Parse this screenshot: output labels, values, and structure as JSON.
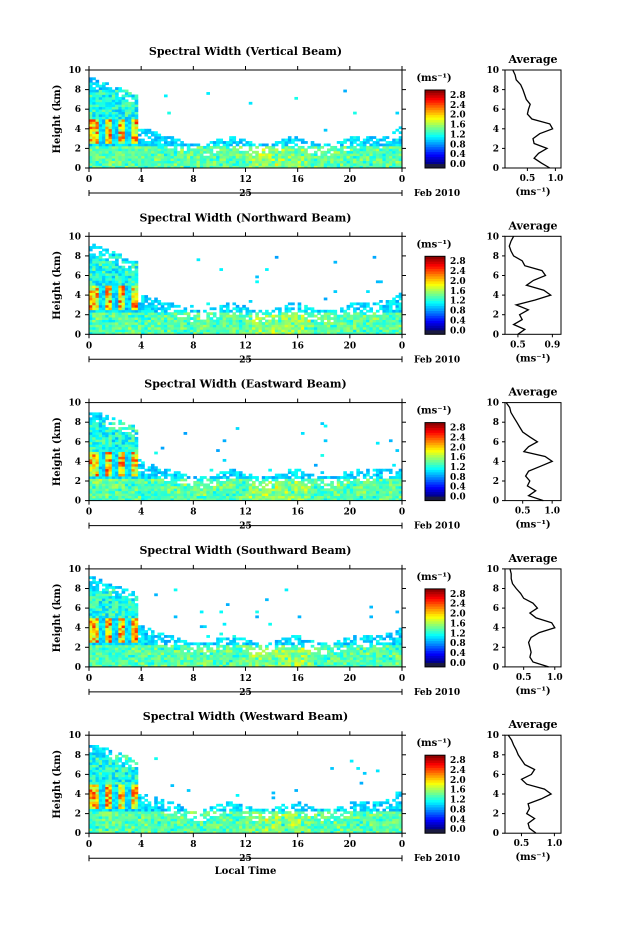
{
  "chart_data": [
    {
      "type": "heatmap",
      "title": "Spectral Width (Vertical Beam)",
      "ylabel": "Height (km)",
      "xlim": [
        0,
        24
      ],
      "ylim": [
        0,
        10
      ],
      "xticks": [
        "0",
        "4",
        "8",
        "12",
        "16",
        "20",
        "0"
      ],
      "yticks": [
        "0",
        "2",
        "4",
        "6",
        "8",
        "10"
      ],
      "date_label": "25",
      "month_label": "Feb 2010",
      "colorbar": {
        "unit": "(ms⁻¹)",
        "ticks": [
          "0.0",
          "0.4",
          "0.8",
          "1.2",
          "1.6",
          "2.0",
          "2.4",
          "2.8"
        ],
        "range": [
          0,
          3.0
        ]
      },
      "profile": {
        "title": "Average",
        "xlabel": "(ms⁻¹)",
        "xticks": [
          "0.5",
          "1.0"
        ],
        "xlim": [
          0.1,
          1.1
        ],
        "heights": [
          0,
          0.5,
          1,
          1.5,
          2,
          2.5,
          3,
          3.5,
          4,
          4.5,
          5,
          5.5,
          6,
          6.5,
          7,
          7.5,
          8,
          8.5,
          9,
          9.5,
          10
        ],
        "values": [
          0.9,
          0.75,
          0.62,
          0.7,
          0.85,
          0.62,
          0.6,
          0.72,
          0.95,
          0.9,
          0.58,
          0.5,
          0.52,
          0.55,
          0.48,
          0.45,
          0.42,
          0.38,
          0.3,
          0.28,
          0.24
        ]
      }
    },
    {
      "type": "heatmap",
      "title": "Spectral Width (Northward Beam)",
      "ylabel": "Height (km)",
      "xlim": [
        0,
        24
      ],
      "ylim": [
        0,
        10
      ],
      "xticks": [
        "0",
        "4",
        "8",
        "12",
        "16",
        "20",
        "0"
      ],
      "yticks": [
        "0",
        "2",
        "4",
        "6",
        "8",
        "10"
      ],
      "date_label": "25",
      "month_label": "Feb 2010",
      "colorbar": {
        "unit": "(ms⁻¹)",
        "ticks": [
          "0.0",
          "0.4",
          "0.8",
          "1.2",
          "1.6",
          "2.0",
          "2.4",
          "2.8"
        ],
        "range": [
          0,
          3.0
        ]
      },
      "profile": {
        "title": "Average",
        "xlabel": "(ms⁻¹)",
        "xticks": [
          "0.5",
          "0.9"
        ],
        "xlim": [
          0.35,
          1.0
        ],
        "heights": [
          0,
          0.5,
          1,
          1.5,
          2,
          2.5,
          3,
          3.5,
          4,
          4.5,
          5,
          5.5,
          6,
          6.5,
          7,
          7.5,
          8,
          8.5,
          9,
          9.5,
          10
        ],
        "values": [
          0.5,
          0.58,
          0.45,
          0.55,
          0.52,
          0.62,
          0.48,
          0.7,
          0.88,
          0.8,
          0.6,
          0.68,
          0.82,
          0.78,
          0.58,
          0.55,
          0.45,
          0.42,
          0.4,
          0.42,
          0.45
        ]
      }
    },
    {
      "type": "heatmap",
      "title": "Spectral Width (Eastward Beam)",
      "ylabel": "Height (km)",
      "xlim": [
        0,
        24
      ],
      "ylim": [
        0,
        10
      ],
      "xticks": [
        "0",
        "4",
        "8",
        "12",
        "16",
        "20",
        "0"
      ],
      "yticks": [
        "0",
        "2",
        "4",
        "6",
        "8",
        "10"
      ],
      "date_label": "25",
      "month_label": "Feb 2010",
      "colorbar": {
        "unit": "(ms⁻¹)",
        "ticks": [
          "0.0",
          "0.4",
          "0.8",
          "1.2",
          "1.6",
          "2.0",
          "2.4",
          "2.8"
        ],
        "range": [
          0,
          3.0
        ]
      },
      "profile": {
        "title": "Average",
        "xlabel": "(ms⁻¹)",
        "xticks": [
          "0.5",
          "1.0"
        ],
        "xlim": [
          0.2,
          1.15
        ],
        "heights": [
          0,
          0.5,
          1,
          1.5,
          2,
          2.5,
          3,
          3.5,
          4,
          4.5,
          5,
          5.5,
          6,
          6.5,
          7,
          7.5,
          8,
          8.5,
          9,
          9.5,
          10
        ],
        "values": [
          0.85,
          0.6,
          0.72,
          0.58,
          0.62,
          0.55,
          0.6,
          0.8,
          1.0,
          0.88,
          0.52,
          0.6,
          0.75,
          0.62,
          0.5,
          0.45,
          0.4,
          0.35,
          0.3,
          0.28,
          0.22
        ]
      }
    },
    {
      "type": "heatmap",
      "title": "Spectral Width (Southward Beam)",
      "ylabel": "Height (km)",
      "xlim": [
        0,
        24
      ],
      "ylim": [
        0,
        10
      ],
      "xticks": [
        "0",
        "4",
        "8",
        "12",
        "16",
        "20",
        "0"
      ],
      "yticks": [
        "0",
        "2",
        "4",
        "6",
        "8",
        "10"
      ],
      "date_label": "25",
      "month_label": "Feb 2010",
      "colorbar": {
        "unit": "(ms⁻¹)",
        "ticks": [
          "0.0",
          "0.4",
          "0.8",
          "1.2",
          "1.6",
          "2.0",
          "2.4",
          "2.8"
        ],
        "range": [
          0,
          3.0
        ]
      },
      "profile": {
        "title": "Average",
        "xlabel": "(ms⁻¹)",
        "xticks": [
          "0.5",
          "1.0"
        ],
        "xlim": [
          0.2,
          1.1
        ],
        "heights": [
          0,
          0.5,
          1,
          1.5,
          2,
          2.5,
          3,
          3.5,
          4,
          4.5,
          5,
          5.5,
          6,
          6.5,
          7,
          7.5,
          8,
          8.5,
          9,
          9.5,
          10
        ],
        "values": [
          0.9,
          0.65,
          0.6,
          0.62,
          0.6,
          0.58,
          0.62,
          0.75,
          1.0,
          0.95,
          0.7,
          0.6,
          0.72,
          0.65,
          0.5,
          0.45,
          0.38,
          0.32,
          0.3,
          0.3,
          0.28
        ]
      }
    },
    {
      "type": "heatmap",
      "title": "Spectral Width (Westward Beam)",
      "ylabel": "Height (km)",
      "xlabel": "Local Time",
      "xlim": [
        0,
        24
      ],
      "ylim": [
        0,
        10
      ],
      "xticks": [
        "0",
        "4",
        "8",
        "12",
        "16",
        "20",
        "0"
      ],
      "yticks": [
        "0",
        "2",
        "4",
        "6",
        "8",
        "10"
      ],
      "date_label": "25",
      "month_label": "Feb 2010",
      "colorbar": {
        "unit": "(ms⁻¹)",
        "ticks": [
          "0.0",
          "0.4",
          "0.8",
          "1.2",
          "1.6",
          "2.0",
          "2.4",
          "2.8"
        ],
        "range": [
          0,
          3.0
        ]
      },
      "profile": {
        "title": "Average",
        "xlabel": "(ms⁻¹)",
        "xticks": [
          "0.5",
          "1.0"
        ],
        "xlim": [
          0.25,
          1.1
        ],
        "heights": [
          0,
          0.5,
          1,
          1.5,
          2,
          2.5,
          3,
          3.5,
          4,
          4.5,
          5,
          5.5,
          6,
          6.5,
          7,
          7.5,
          8,
          8.5,
          9,
          9.5,
          10
        ],
        "values": [
          0.72,
          0.62,
          0.6,
          0.7,
          0.58,
          0.62,
          0.6,
          0.8,
          0.95,
          0.85,
          0.58,
          0.5,
          0.65,
          0.7,
          0.55,
          0.5,
          0.45,
          0.42,
          0.38,
          0.35,
          0.3
        ]
      }
    }
  ]
}
